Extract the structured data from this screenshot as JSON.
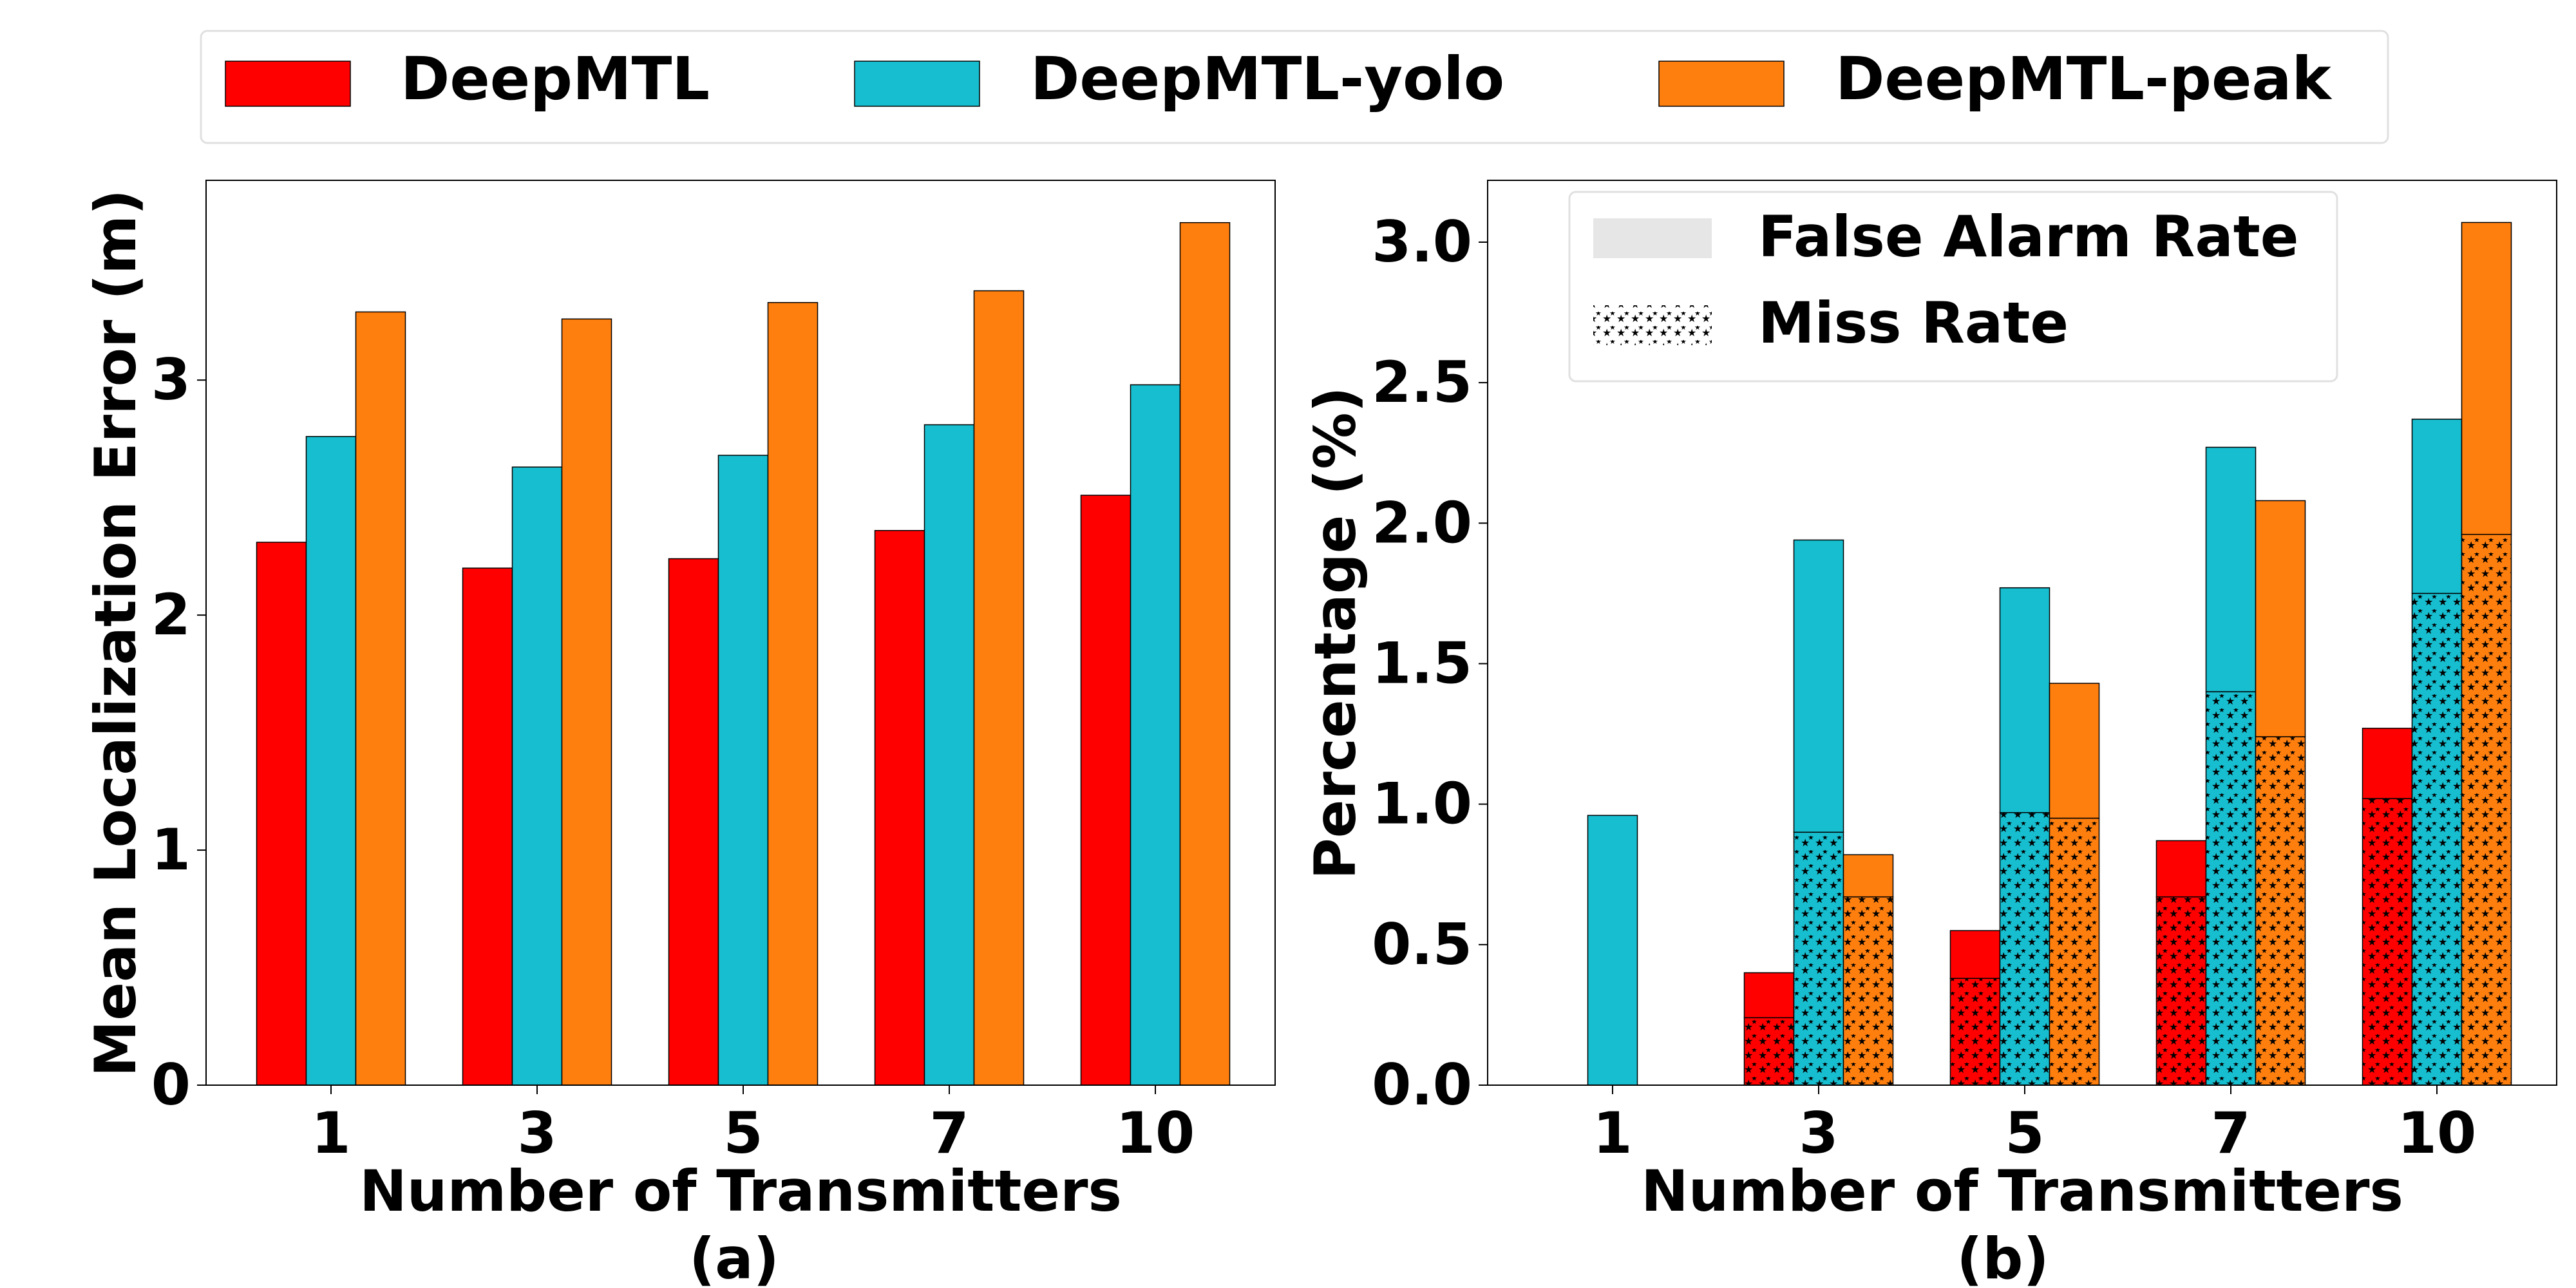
{
  "legend": {
    "items": [
      {
        "label": "DeepMTL",
        "color": "#ff0000"
      },
      {
        "label": "DeepMTL-yolo",
        "color": "#17becf"
      },
      {
        "label": "DeepMTL-peak",
        "color": "#ff7f0e"
      }
    ]
  },
  "chart_data": [
    {
      "type": "bar",
      "caption": "(a)",
      "xlabel": "Number of Transmitters",
      "ylabel": "Mean Localization Error (m)",
      "categories": [
        "1",
        "3",
        "5",
        "7",
        "10"
      ],
      "ylim": [
        0,
        3.85
      ],
      "yticks": [
        0,
        1,
        2,
        3
      ],
      "series": [
        {
          "name": "DeepMTL",
          "color": "#ff0000",
          "values": [
            2.31,
            2.2,
            2.24,
            2.36,
            2.51
          ]
        },
        {
          "name": "DeepMTL-yolo",
          "color": "#17becf",
          "values": [
            2.76,
            2.63,
            2.68,
            2.81,
            2.98
          ]
        },
        {
          "name": "DeepMTL-peak",
          "color": "#ff7f0e",
          "values": [
            3.29,
            3.26,
            3.33,
            3.38,
            3.67
          ]
        }
      ]
    },
    {
      "type": "bar",
      "stacked": true,
      "caption": "(b)",
      "xlabel": "Number of Transmitters",
      "ylabel": "Percentage (%)",
      "categories": [
        "1",
        "3",
        "5",
        "7",
        "10"
      ],
      "ylim": [
        0,
        3.22
      ],
      "yticks": [
        "0.0",
        "0.5",
        "1.0",
        "1.5",
        "2.0",
        "2.5",
        "3.0"
      ],
      "legend": [
        {
          "label": "False Alarm Rate",
          "pattern": "solid"
        },
        {
          "label": "Miss Rate",
          "pattern": "stars"
        }
      ],
      "series": [
        {
          "name": "DeepMTL",
          "color": "#ff0000",
          "miss_rate": [
            0.0,
            0.24,
            0.38,
            0.67,
            1.02
          ],
          "false_alarm_rate": [
            0.0,
            0.16,
            0.17,
            0.2,
            0.25
          ]
        },
        {
          "name": "DeepMTL-yolo",
          "color": "#17becf",
          "miss_rate": [
            0.0,
            0.9,
            0.97,
            1.4,
            1.75
          ],
          "false_alarm_rate": [
            0.96,
            1.04,
            0.8,
            0.87,
            0.62
          ]
        },
        {
          "name": "DeepMTL-peak",
          "color": "#ff7f0e",
          "miss_rate": [
            0.0,
            0.67,
            0.95,
            1.24,
            1.96
          ],
          "false_alarm_rate": [
            0.0,
            0.15,
            0.48,
            0.84,
            1.11
          ]
        }
      ]
    }
  ]
}
